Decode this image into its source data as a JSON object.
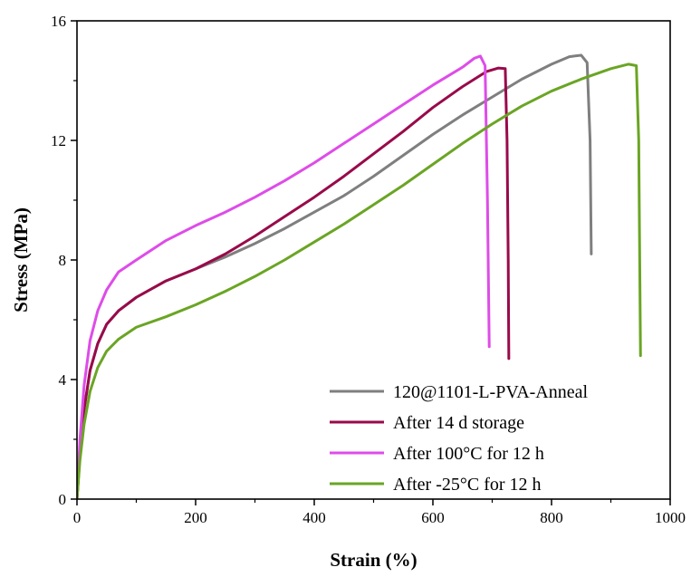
{
  "chart_data": {
    "type": "line",
    "xlabel": "Strain (%)",
    "ylabel": "Stress (MPa)",
    "xlim": [
      0,
      1000
    ],
    "ylim": [
      0,
      16
    ],
    "x_ticks": [
      0,
      200,
      400,
      600,
      800,
      1000
    ],
    "y_ticks": [
      0,
      4,
      8,
      12,
      16
    ],
    "grid": false,
    "legend_position": "bottom-right",
    "series": [
      {
        "name": "120@1101-L-PVA-Anneal",
        "color": "#7f7f7f",
        "points": [
          [
            0,
            0
          ],
          [
            5,
            1.5
          ],
          [
            12,
            3
          ],
          [
            22,
            4.3
          ],
          [
            35,
            5.2
          ],
          [
            50,
            5.85
          ],
          [
            70,
            6.3
          ],
          [
            100,
            6.75
          ],
          [
            150,
            7.3
          ],
          [
            200,
            7.7
          ],
          [
            250,
            8.1
          ],
          [
            300,
            8.55
          ],
          [
            350,
            9.05
          ],
          [
            400,
            9.6
          ],
          [
            450,
            10.15
          ],
          [
            500,
            10.8
          ],
          [
            550,
            11.5
          ],
          [
            600,
            12.2
          ],
          [
            650,
            12.85
          ],
          [
            700,
            13.45
          ],
          [
            750,
            14.05
          ],
          [
            800,
            14.55
          ],
          [
            830,
            14.8
          ],
          [
            850,
            14.85
          ],
          [
            860,
            14.6
          ],
          [
            865,
            12
          ],
          [
            867,
            8.2
          ]
        ]
      },
      {
        "name": "After 14 d storage",
        "color": "#990a4a",
        "points": [
          [
            0,
            0
          ],
          [
            5,
            1.5
          ],
          [
            12,
            3
          ],
          [
            22,
            4.3
          ],
          [
            35,
            5.2
          ],
          [
            50,
            5.85
          ],
          [
            70,
            6.3
          ],
          [
            100,
            6.75
          ],
          [
            150,
            7.3
          ],
          [
            200,
            7.7
          ],
          [
            250,
            8.2
          ],
          [
            300,
            8.8
          ],
          [
            350,
            9.45
          ],
          [
            400,
            10.1
          ],
          [
            450,
            10.8
          ],
          [
            500,
            11.55
          ],
          [
            550,
            12.3
          ],
          [
            600,
            13.1
          ],
          [
            650,
            13.8
          ],
          [
            690,
            14.3
          ],
          [
            710,
            14.42
          ],
          [
            722,
            14.4
          ],
          [
            725,
            12
          ],
          [
            727,
            8
          ],
          [
            728,
            4.7
          ]
        ]
      },
      {
        "name": "After 100°C for 12 h",
        "color": "#de4ce8",
        "points": [
          [
            0,
            0
          ],
          [
            5,
            2
          ],
          [
            12,
            3.8
          ],
          [
            22,
            5.3
          ],
          [
            35,
            6.3
          ],
          [
            50,
            7.0
          ],
          [
            70,
            7.6
          ],
          [
            100,
            8.0
          ],
          [
            150,
            8.65
          ],
          [
            200,
            9.15
          ],
          [
            250,
            9.6
          ],
          [
            300,
            10.1
          ],
          [
            350,
            10.65
          ],
          [
            400,
            11.25
          ],
          [
            450,
            11.9
          ],
          [
            500,
            12.55
          ],
          [
            550,
            13.2
          ],
          [
            600,
            13.85
          ],
          [
            650,
            14.45
          ],
          [
            670,
            14.75
          ],
          [
            680,
            14.82
          ],
          [
            688,
            14.5
          ],
          [
            692,
            10
          ],
          [
            695,
            5.1
          ]
        ]
      },
      {
        "name": "After -25°C for 12 h",
        "color": "#6aa524",
        "points": [
          [
            0,
            0
          ],
          [
            5,
            1.3
          ],
          [
            12,
            2.5
          ],
          [
            22,
            3.6
          ],
          [
            35,
            4.4
          ],
          [
            50,
            4.95
          ],
          [
            70,
            5.35
          ],
          [
            100,
            5.75
          ],
          [
            150,
            6.1
          ],
          [
            200,
            6.5
          ],
          [
            250,
            6.95
          ],
          [
            300,
            7.45
          ],
          [
            350,
            8.0
          ],
          [
            400,
            8.6
          ],
          [
            450,
            9.2
          ],
          [
            500,
            9.85
          ],
          [
            550,
            10.5
          ],
          [
            600,
            11.2
          ],
          [
            650,
            11.9
          ],
          [
            700,
            12.55
          ],
          [
            750,
            13.15
          ],
          [
            800,
            13.65
          ],
          [
            850,
            14.05
          ],
          [
            900,
            14.4
          ],
          [
            930,
            14.55
          ],
          [
            943,
            14.5
          ],
          [
            947,
            12
          ],
          [
            950,
            4.8
          ]
        ]
      }
    ]
  }
}
